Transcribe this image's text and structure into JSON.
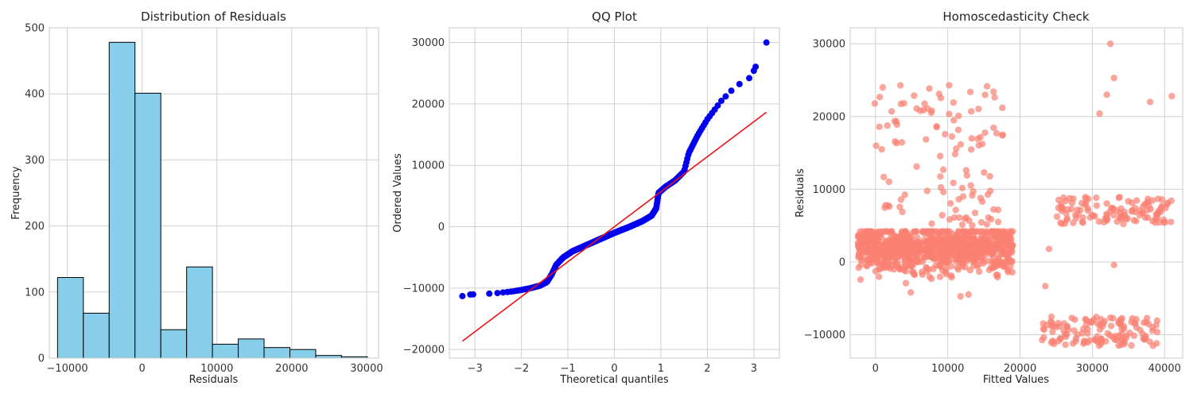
{
  "chart_data": [
    {
      "type": "bar",
      "title": "Distribution of Residuals",
      "xlabel": "Residuals",
      "ylabel": "Frequency",
      "xlim": [
        -12400,
        31600
      ],
      "ylim": [
        0,
        500
      ],
      "xticks": [
        -10000,
        0,
        10000,
        20000,
        30000
      ],
      "yticks": [
        0,
        100,
        200,
        300,
        400,
        500
      ],
      "grid": true,
      "bar_color": "#87CEEB",
      "bin_edges": [
        -11300,
        -7850,
        -4400,
        -950,
        2500,
        5950,
        9400,
        12850,
        16300,
        19750,
        23200,
        26650,
        30100
      ],
      "values": [
        122,
        68,
        478,
        401,
        43,
        138,
        21,
        29,
        16,
        13,
        4,
        2
      ]
    },
    {
      "type": "scatter",
      "title": "QQ Plot",
      "xlabel": "Theoretical quantiles",
      "ylabel": "Ordered Values",
      "xlim": [
        -3.55,
        3.55
      ],
      "ylim": [
        -21400,
        32400
      ],
      "xticks": [
        -3,
        -2,
        -1,
        0,
        1,
        2,
        3
      ],
      "yticks": [
        -20000,
        -10000,
        0,
        10000,
        20000,
        30000
      ],
      "grid": true,
      "point_color": "#0000EE",
      "line_color": "#EE1111",
      "fit_line": {
        "slope": 5700,
        "intercept": 0,
        "x_range": [
          -3.27,
          3.27
        ]
      },
      "profile": [
        [
          -3.27,
          -11300
        ],
        [
          -3.1,
          -11050
        ],
        [
          -2.8,
          -10950
        ],
        [
          -2.5,
          -10800
        ],
        [
          -2.2,
          -10550
        ],
        [
          -2.0,
          -10300
        ],
        [
          -1.8,
          -10000
        ],
        [
          -1.6,
          -9600
        ],
        [
          -1.45,
          -9000
        ],
        [
          -1.35,
          -7800
        ],
        [
          -1.25,
          -6200
        ],
        [
          -1.1,
          -5000
        ],
        [
          -0.9,
          -4000
        ],
        [
          -0.6,
          -3000
        ],
        [
          -0.3,
          -2000
        ],
        [
          0.0,
          -1000
        ],
        [
          0.3,
          -100
        ],
        [
          0.6,
          900
        ],
        [
          0.8,
          1800
        ],
        [
          0.9,
          3000
        ],
        [
          0.95,
          5500
        ],
        [
          1.1,
          6500
        ],
        [
          1.3,
          7500
        ],
        [
          1.5,
          9000
        ],
        [
          1.6,
          12000
        ],
        [
          1.8,
          15000
        ],
        [
          2.0,
          17500
        ],
        [
          2.3,
          20500
        ],
        [
          2.6,
          22800
        ],
        [
          2.85,
          24000
        ],
        [
          3.0,
          25400
        ],
        [
          3.27,
          30000
        ]
      ],
      "extreme_points": [
        [
          -3.27,
          -11300
        ],
        [
          -3.1,
          -11050
        ],
        [
          2.9,
          24200
        ],
        [
          3.0,
          25400
        ],
        [
          3.27,
          30000
        ]
      ]
    },
    {
      "type": "scatter",
      "title": "Homoscedasticity Check",
      "xlabel": "Fitted Values",
      "ylabel": "Residuals",
      "xlim": [
        -3500,
        42500
      ],
      "ylim": [
        -13200,
        32200
      ],
      "xticks": [
        0,
        10000,
        20000,
        30000,
        40000
      ],
      "yticks": [
        -10000,
        0,
        10000,
        20000,
        30000
      ],
      "grid": true,
      "point_color": "#FA8072",
      "point_alpha": 0.7,
      "clusters": [
        {
          "description": "main cluster",
          "x_range": [
            -2500,
            19000
          ],
          "residual_trend": {
            "at_x0": 2000,
            "slope": -0.000333
          },
          "spread": 5000,
          "count": 900
        },
        {
          "description": "upper outliers low fitted",
          "x_range": [
            0,
            18000
          ],
          "y_range": [
            5000,
            24500
          ],
          "count": 110
        },
        {
          "description": "upper right band",
          "x_range": [
            25000,
            41000
          ],
          "y_range": [
            5200,
            9000
          ],
          "count": 120
        },
        {
          "description": "lower right band",
          "x_range": [
            23000,
            39000
          ],
          "y_range": [
            -11500,
            -7500
          ],
          "count": 130
        }
      ],
      "notable_points": [
        [
          32500,
          30000
        ],
        [
          33000,
          25300
        ],
        [
          32000,
          23000
        ],
        [
          38000,
          22000
        ],
        [
          41000,
          22800
        ],
        [
          31000,
          20400
        ],
        [
          1000,
          24000
        ],
        [
          10200,
          24300
        ],
        [
          -100,
          21800
        ],
        [
          33000,
          -400
        ],
        [
          23500,
          -3300
        ],
        [
          24000,
          1800
        ]
      ]
    }
  ]
}
